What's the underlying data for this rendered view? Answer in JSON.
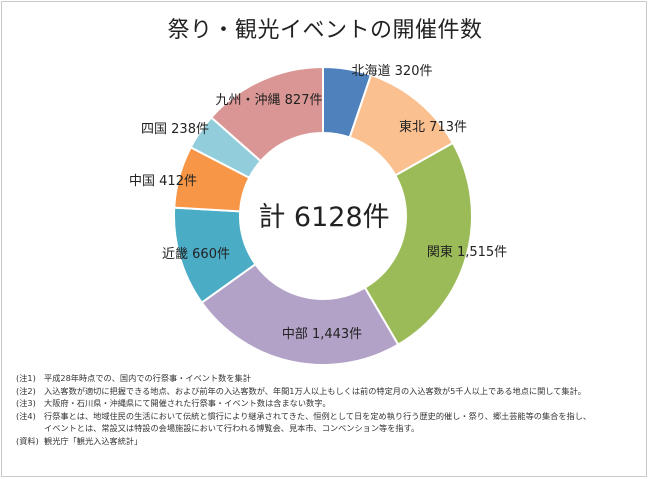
{
  "title": "祭り・観光イベントの開催件数",
  "chart_data": {
    "type": "donut",
    "title": "祭り・観光イベントの開催件数",
    "center_label": "計 6128件",
    "total": 6128,
    "slices": [
      {
        "name": "北海道",
        "value": 320,
        "label": "北海道 320件",
        "color": "#4f81bd"
      },
      {
        "name": "東北",
        "value": 713,
        "label": "東北 713件",
        "color": "#fac090"
      },
      {
        "name": "関東",
        "value": 1515,
        "label": "関東 1,515件",
        "color": "#9bbb59"
      },
      {
        "name": "中部",
        "value": 1443,
        "label": "中部 1,443件",
        "color": "#b3a2c7"
      },
      {
        "name": "近畿",
        "value": 660,
        "label": "近畿 660件",
        "color": "#4bacc6"
      },
      {
        "name": "中国",
        "value": 412,
        "label": "中国 412件",
        "color": "#f79646"
      },
      {
        "name": "四国",
        "value": 238,
        "label": "四国 238件",
        "color": "#92cddc"
      },
      {
        "name": "九州・沖縄",
        "value": 827,
        "label": "九州・沖縄 827件",
        "color": "#d99694"
      }
    ]
  },
  "notes": [
    {
      "label": "(注1)",
      "text": "平成28年時点での、国内での行祭事・イベント数を集計"
    },
    {
      "label": "(注2)",
      "text": "入込客数が適切に把握できる地点、および前年の入込客数が、年間1万人以上もしくは前の特定月の入込客数が5千人以上である地点に関して集計。"
    },
    {
      "label": "(注3)",
      "text": "大阪府・石川県・沖縄県にて開催された行祭事・イベント数は含まない数字。"
    },
    {
      "label": "(注4)",
      "text": "行祭事とは、地域住民の生活において伝統と慣行により継承されてきた、恒例として日を定め執り行う歴史的催し・祭り、郷土芸能等の集合を指し、"
    },
    {
      "label": "",
      "text": "イベントとは、常設又は特設の会場施設において行われる博覧会、見本市、コンベンション等を指す。"
    },
    {
      "label": "(資料)",
      "text": "観光庁「観光入込客統計」"
    }
  ]
}
